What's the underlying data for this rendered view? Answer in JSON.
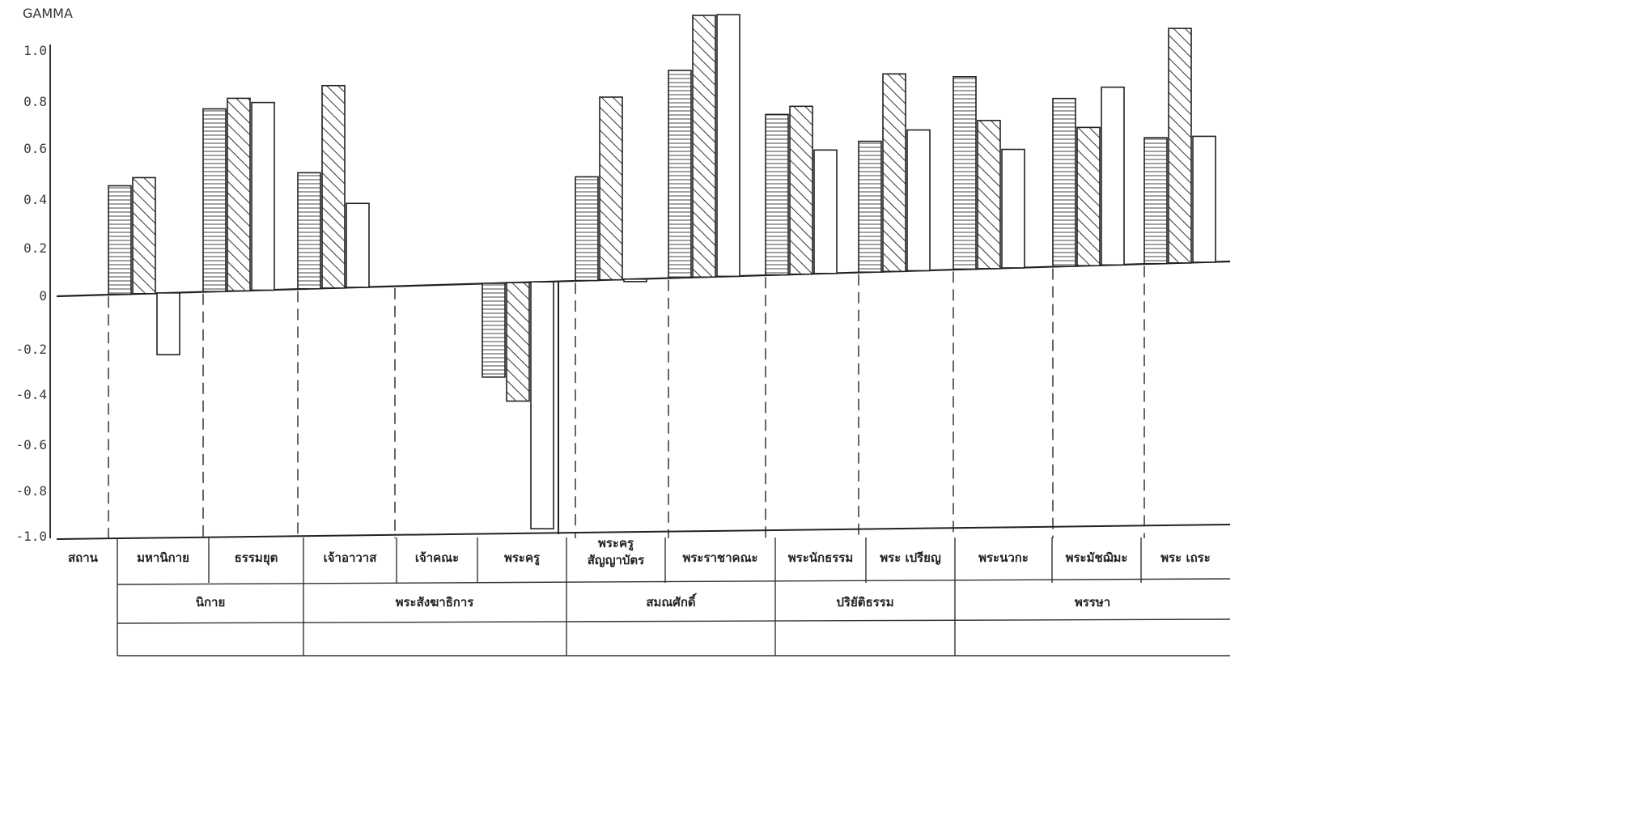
{
  "chart_data": {
    "type": "bar",
    "ylabel": "GAMMA",
    "ylim": [
      -1.0,
      1.0
    ],
    "yticks": [
      "1.0",
      "0.8",
      "0.6",
      "0.4",
      "0.2",
      "0",
      "-0.2",
      "-0.4",
      "-0.6",
      "-0.8",
      "-1.0"
    ],
    "row_header": "สถาน",
    "categories": [
      "มหานิกาย",
      "ธรรมยุต",
      "เจ้าอาวาส",
      "เจ้าคณะ",
      "พระครู",
      "พระครู สัญญาบัตร",
      "พระราชาคณะ",
      "พระนักธรรม",
      "พระ เปรียญ",
      "พระนวกะ",
      "พระมัชฌิมะ",
      "พระ เถระ"
    ],
    "groups": [
      {
        "label": "นิกาย",
        "categories": [
          "มหานิกาย",
          "ธรรมยุต"
        ]
      },
      {
        "label": "พระสังฆาธิการ",
        "categories": [
          "เจ้าอาวาส",
          "เจ้าคณะ",
          "พระครู"
        ]
      },
      {
        "label": "สมณศักดิ์",
        "categories": [
          "พระครู สัญญาบัตร",
          "พระราชาคณะ"
        ]
      },
      {
        "label": "ปริยัติธรรม",
        "categories": [
          "พระนักธรรม",
          "พระ เปรียญ"
        ]
      },
      {
        "label": "พรรษา",
        "categories": [
          "พระนวกะ",
          "พระมัชฌิมะ",
          "พระ เถระ"
        ]
      }
    ],
    "series": [
      {
        "pattern": "horizontal-hatch",
        "values": [
          0.44,
          0.74,
          0.47,
          null,
          -0.38,
          0.42,
          0.84,
          0.65,
          0.53,
          0.78,
          0.68,
          0.51
        ]
      },
      {
        "pattern": "diagonal-hatch",
        "values": [
          0.47,
          0.78,
          0.82,
          null,
          -0.48,
          0.74,
          1.06,
          0.68,
          0.8,
          0.6,
          0.56,
          0.95
        ]
      },
      {
        "pattern": "empty",
        "values": [
          -0.25,
          0.76,
          0.34,
          null,
          -1.0,
          -0.01,
          1.06,
          0.5,
          0.57,
          0.48,
          0.72,
          0.51
        ]
      }
    ]
  }
}
